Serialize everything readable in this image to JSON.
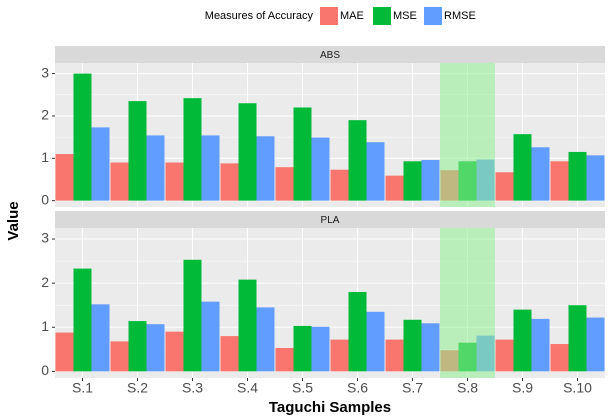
{
  "chart_data": {
    "type": "bar",
    "legend_title": "Measures of Accuracy",
    "xlabel": "Taguchi Samples",
    "ylabel": "Value",
    "categories": [
      "S.1",
      "S.2",
      "S.3",
      "S.4",
      "S.5",
      "S.6",
      "S.7",
      "S.8",
      "S.9",
      "S.10"
    ],
    "highlight": "S.8",
    "ylim": [
      -0.15,
      3.25
    ],
    "yticks": [
      0,
      1,
      2,
      3
    ],
    "grid": true,
    "series": [
      {
        "name": "MAE",
        "color": "#F8766D"
      },
      {
        "name": "MSE",
        "color": "#00BA38"
      },
      {
        "name": "RMSE",
        "color": "#619CFF"
      }
    ],
    "panels": [
      {
        "title": "ABS",
        "series": [
          {
            "values": [
              1.1,
              0.9,
              0.9,
              0.88,
              0.79,
              0.73,
              0.59,
              0.72,
              0.67,
              0.93
            ]
          },
          {
            "values": [
              3.0,
              2.35,
              2.42,
              2.3,
              2.2,
              1.9,
              0.93,
              0.93,
              1.57,
              1.15
            ]
          },
          {
            "values": [
              1.73,
              1.54,
              1.54,
              1.52,
              1.49,
              1.38,
              0.96,
              0.97,
              1.26,
              1.07
            ]
          }
        ]
      },
      {
        "title": "PLA",
        "series": [
          {
            "values": [
              0.88,
              0.68,
              0.9,
              0.8,
              0.53,
              0.72,
              0.72,
              0.48,
              0.72,
              0.62
            ]
          },
          {
            "values": [
              2.33,
              1.14,
              2.53,
              2.08,
              1.03,
              1.8,
              1.17,
              0.65,
              1.4,
              1.5
            ]
          },
          {
            "values": [
              1.52,
              1.07,
              1.58,
              1.45,
              1.01,
              1.35,
              1.09,
              0.81,
              1.19,
              1.22
            ]
          }
        ]
      }
    ]
  }
}
